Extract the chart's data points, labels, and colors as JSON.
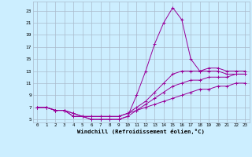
{
  "bg_color": "#cceeff",
  "grid_color": "#aabbcc",
  "line_color": "#990099",
  "xlabel": "Windchill (Refroidissement éolien,°C)",
  "xlim": [
    -0.5,
    23.5
  ],
  "ylim": [
    4.5,
    24.5
  ],
  "yticks": [
    5,
    7,
    9,
    11,
    13,
    15,
    17,
    19,
    21,
    23
  ],
  "xticks": [
    0,
    1,
    2,
    3,
    4,
    5,
    6,
    7,
    8,
    9,
    10,
    11,
    12,
    13,
    14,
    15,
    16,
    17,
    18,
    19,
    20,
    21,
    22,
    23
  ],
  "lines": [
    {
      "x": [
        0,
        1,
        2,
        3,
        4,
        5,
        6,
        7,
        8,
        9,
        10,
        11,
        12,
        13,
        14,
        15,
        16,
        17,
        18,
        19,
        20,
        21,
        22,
        23
      ],
      "y": [
        7,
        7,
        6.5,
        6.5,
        5.5,
        5.5,
        5,
        5,
        5,
        5,
        5.5,
        9,
        13,
        17.5,
        21,
        23.5,
        21.5,
        15,
        13,
        13,
        13,
        12.5,
        12.5,
        12.5
      ]
    },
    {
      "x": [
        0,
        1,
        2,
        3,
        4,
        5,
        6,
        7,
        8,
        9,
        10,
        11,
        12,
        13,
        14,
        15,
        16,
        17,
        18,
        19,
        20,
        21,
        22,
        23
      ],
      "y": [
        7,
        7,
        6.5,
        6.5,
        6,
        5.5,
        5.5,
        5.5,
        5.5,
        5.5,
        6,
        7,
        8,
        9.5,
        11,
        12.5,
        13,
        13,
        13,
        13.5,
        13.5,
        13,
        13,
        13
      ]
    },
    {
      "x": [
        0,
        1,
        2,
        3,
        4,
        5,
        6,
        7,
        8,
        9,
        10,
        11,
        12,
        13,
        14,
        15,
        16,
        17,
        18,
        19,
        20,
        21,
        22,
        23
      ],
      "y": [
        7,
        7,
        6.5,
        6.5,
        6,
        5.5,
        5.5,
        5.5,
        5.5,
        5.5,
        6,
        6.5,
        7.5,
        8.5,
        9.5,
        10.5,
        11,
        11.5,
        11.5,
        12,
        12,
        12,
        12.5,
        12.5
      ]
    },
    {
      "x": [
        0,
        1,
        2,
        3,
        4,
        5,
        6,
        7,
        8,
        9,
        10,
        11,
        12,
        13,
        14,
        15,
        16,
        17,
        18,
        19,
        20,
        21,
        22,
        23
      ],
      "y": [
        7,
        7,
        6.5,
        6.5,
        5.5,
        5.5,
        5,
        5,
        5,
        5,
        5.5,
        6.5,
        7,
        7.5,
        8,
        8.5,
        9,
        9.5,
        10,
        10,
        10.5,
        10.5,
        11,
        11
      ]
    }
  ],
  "figsize": [
    3.2,
    2.0
  ],
  "dpi": 100
}
